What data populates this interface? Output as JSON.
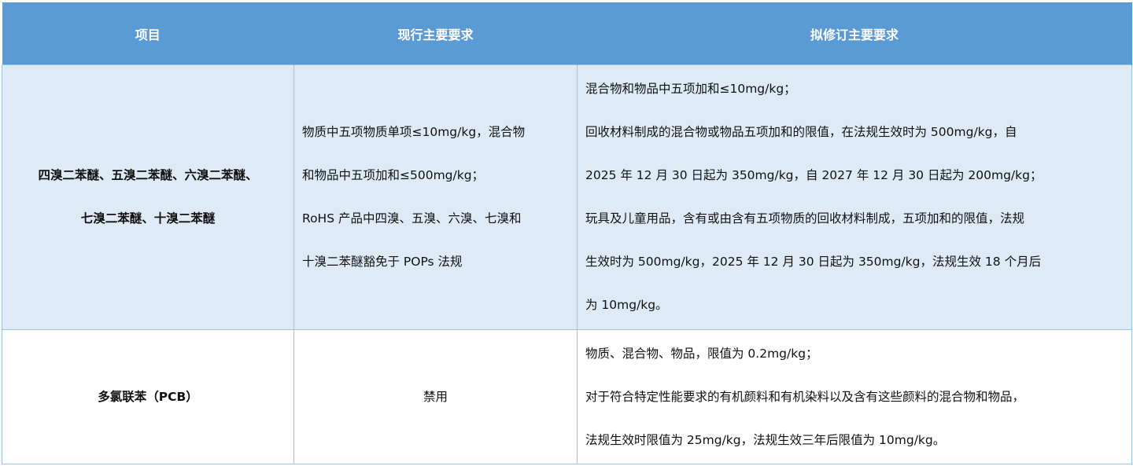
{
  "header": [
    "项目",
    "现行主要要求",
    "拟修订主要要求"
  ],
  "rows": [
    {
      "item": [
        "四溴二苯醚、五溴二苯醚、六溴二苯醚、",
        "七溴二苯醚、十溴二苯醚"
      ],
      "current": [
        "物质中五项物质单项≤10mg/kg，混合物",
        "和物品中五项加和≤500mg/kg；",
        "RoHS 产品中四溴、五溴、六溴、七溴和",
        "十溴二苯醚豁免于 POPs 法规"
      ],
      "proposed": [
        "混合物和物品中五项加和≤10mg/kg；",
        "回收材料制成的混合物或物品五项加和的限值，在法规生效时为  500mg/kg，自",
        "2025 年 12 月 30 日起为 350mg/kg，自 2027 年 12 月 30 日起为 200mg/kg；",
        "玩具及儿童用品，含有或由含有五项物质的回收材料制成，五项加和的限值，法规",
        "生效时为 500mg/kg，2025 年 12 月 30 日起为 350mg/kg，法规生效 18 个月后",
        "为  10mg/kg。"
      ]
    },
    {
      "item": [
        "多氯联苯（PCB）"
      ],
      "current": [
        "禁用"
      ],
      "proposed": [
        "物质、混合物、物品，限值为 0.2mg/kg；",
        "对于符合特定性能要求的有机颜料和有机染料以及含有这些颜料的混合物和物品，",
        "法规生效时限值为 25mg/kg，法规生效三年后限值为 10mg/kg。"
      ]
    }
  ],
  "colors": {
    "header_bg": "#5b9bd5",
    "row_alt_bg": "#deeaf6",
    "border": "#9dc3e6"
  }
}
